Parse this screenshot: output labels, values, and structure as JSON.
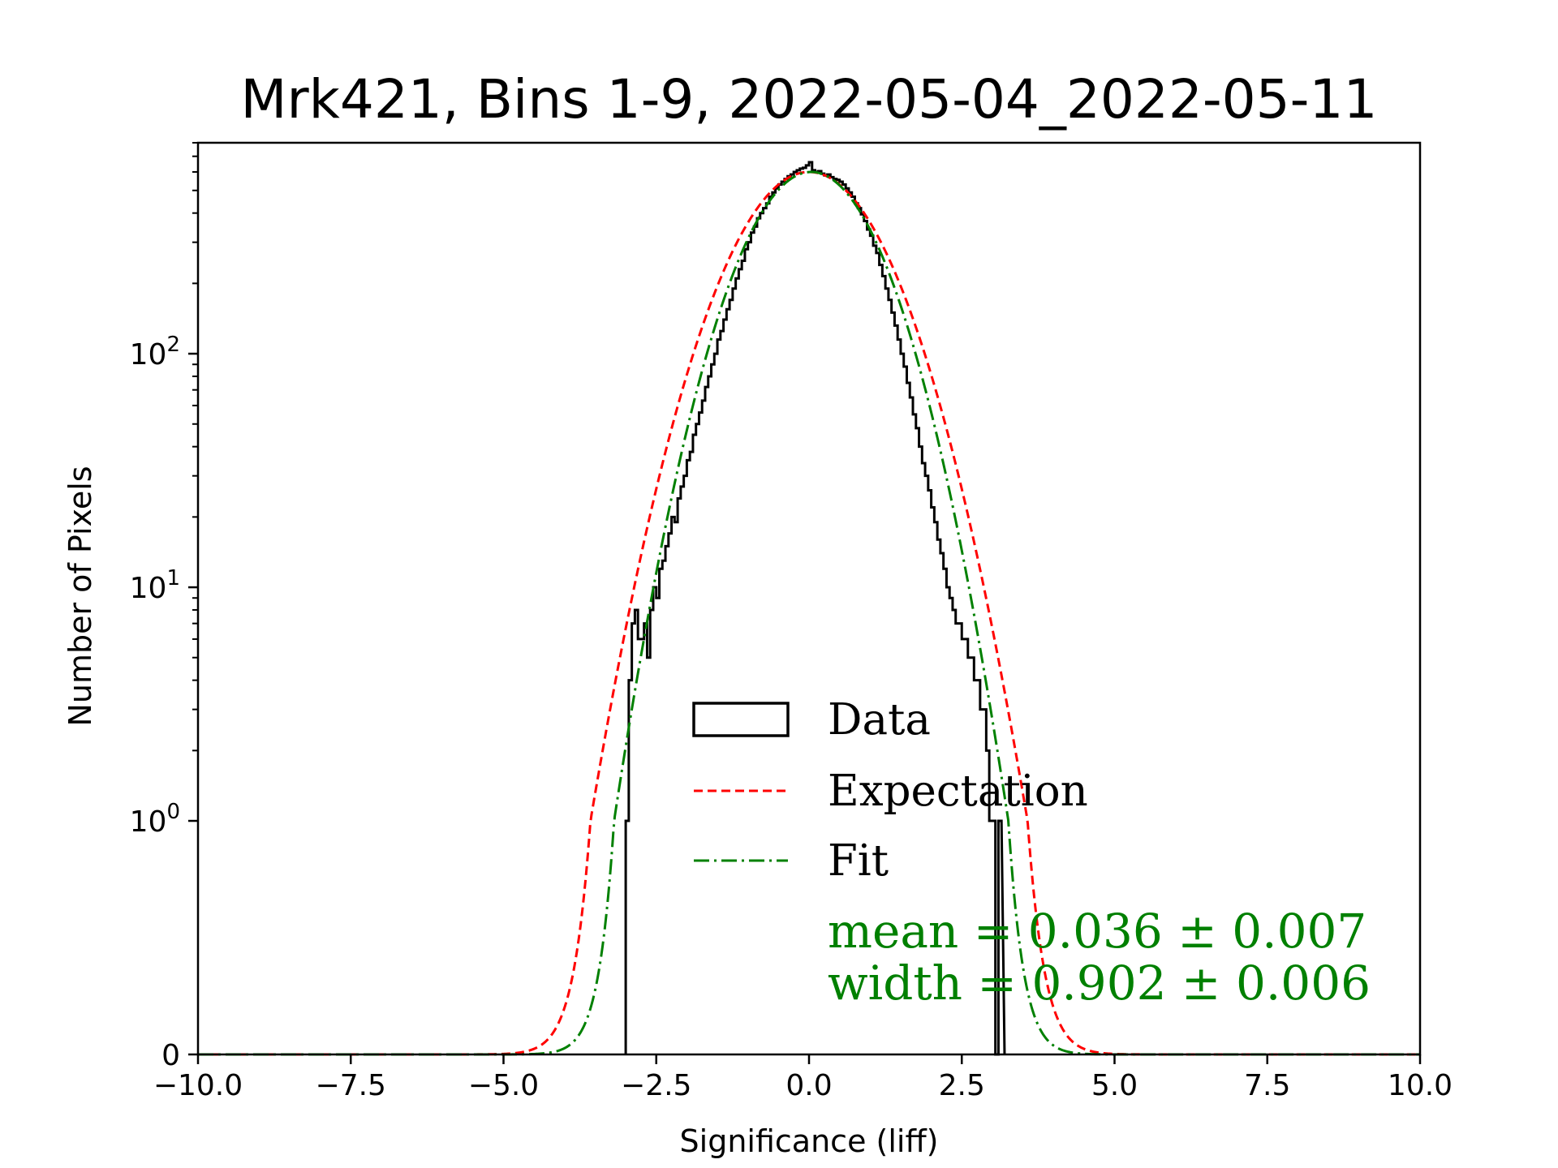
{
  "chart_data": {
    "type": "histogram",
    "title": "Mrk421, Bins 1-9, 2022-05-04_2022-05-11",
    "xlabel": "Significance (liff)",
    "ylabel": "Number of Pixels",
    "xlim": [
      -10,
      10
    ],
    "yscale": "symlog",
    "ylim": [
      0,
      800
    ],
    "xticks": [
      -10,
      -7.5,
      -5,
      -2.5,
      0,
      2.5,
      5,
      7.5,
      10
    ],
    "xtick_labels": [
      "−10.0",
      "−7.5",
      "−5.0",
      "−2.5",
      "0.0",
      "2.5",
      "5.0",
      "7.5",
      "10.0"
    ],
    "yticks": [
      {
        "value": 0,
        "base": "0",
        "exp": ""
      },
      {
        "value": 1,
        "base": "10",
        "exp": "0"
      },
      {
        "value": 10,
        "base": "10",
        "exp": "1"
      },
      {
        "value": 100,
        "base": "10",
        "exp": "2"
      }
    ],
    "legend": {
      "position": "lower-center",
      "entries": [
        {
          "label": "Data",
          "style": "step",
          "color": "#000000"
        },
        {
          "label": "Expectation",
          "style": "dashed",
          "color": "#ff0000"
        },
        {
          "label": "Fit",
          "style": "dashdot",
          "color": "#008000"
        }
      ]
    },
    "annotations": {
      "mean": "mean = 0.036 ± 0.007",
      "width": "width = 0.902 ± 0.006",
      "color": "#008000"
    },
    "expectation": {
      "amplitude": 600,
      "mean": 0.0,
      "sigma": 1.0
    },
    "fit": {
      "amplitude": 600,
      "mean": 0.036,
      "sigma": 0.902
    },
    "series": [
      {
        "name": "Data",
        "bin_edges": [
          -3.0,
          -2.95,
          -2.9,
          -2.85,
          -2.8,
          -2.75,
          -2.7,
          -2.65,
          -2.6,
          -2.55,
          -2.5,
          -2.45,
          -2.4,
          -2.35,
          -2.3,
          -2.25,
          -2.2,
          -2.15,
          -2.1,
          -2.05,
          -2.0,
          -1.95,
          -1.9,
          -1.85,
          -1.8,
          -1.75,
          -1.7,
          -1.65,
          -1.6,
          -1.55,
          -1.5,
          -1.45,
          -1.4,
          -1.35,
          -1.3,
          -1.25,
          -1.2,
          -1.15,
          -1.1,
          -1.05,
          -1.0,
          -0.95,
          -0.9,
          -0.85,
          -0.8,
          -0.75,
          -0.7,
          -0.65,
          -0.6,
          -0.55,
          -0.5,
          -0.45,
          -0.4,
          -0.35,
          -0.3,
          -0.25,
          -0.2,
          -0.15,
          -0.1,
          -0.05,
          0.0,
          0.05,
          0.1,
          0.15,
          0.2,
          0.25,
          0.3,
          0.35,
          0.4,
          0.45,
          0.5,
          0.55,
          0.6,
          0.65,
          0.7,
          0.75,
          0.8,
          0.85,
          0.9,
          0.95,
          1.0,
          1.05,
          1.1,
          1.15,
          1.2,
          1.25,
          1.3,
          1.35,
          1.4,
          1.45,
          1.5,
          1.55,
          1.6,
          1.65,
          1.7,
          1.75,
          1.8,
          1.85,
          1.9,
          1.95,
          2.0,
          2.05,
          2.1,
          2.15,
          2.2,
          2.25,
          2.3,
          2.35,
          2.4,
          2.45,
          2.5,
          2.55,
          2.6,
          2.65,
          2.7,
          2.75,
          2.8,
          2.85,
          2.9,
          2.95,
          3.0,
          3.05,
          3.1,
          3.15
        ],
        "counts": [
          1,
          4,
          7,
          8,
          6,
          6,
          7,
          5,
          8,
          10,
          9,
          12,
          13,
          15,
          17,
          20,
          19,
          24,
          27,
          30,
          35,
          38,
          45,
          50,
          56,
          63,
          72,
          80,
          90,
          100,
          115,
          125,
          140,
          155,
          170,
          190,
          210,
          230,
          250,
          280,
          300,
          330,
          350,
          380,
          400,
          420,
          440,
          470,
          490,
          510,
          530,
          545,
          560,
          575,
          585,
          600,
          610,
          620,
          625,
          640,
          660,
          610,
          600,
          605,
          590,
          580,
          585,
          570,
          560,
          555,
          545,
          530,
          510,
          490,
          470,
          440,
          420,
          395,
          370,
          340,
          320,
          290,
          270,
          240,
          215,
          190,
          170,
          150,
          132,
          115,
          100,
          88,
          75,
          65,
          55,
          48,
          40,
          34,
          30,
          26,
          22,
          19,
          16,
          14,
          12,
          10,
          9,
          8,
          7,
          7,
          6,
          6,
          5,
          5,
          4,
          4,
          3,
          3,
          2,
          1,
          1,
          0,
          1
        ]
      }
    ]
  }
}
